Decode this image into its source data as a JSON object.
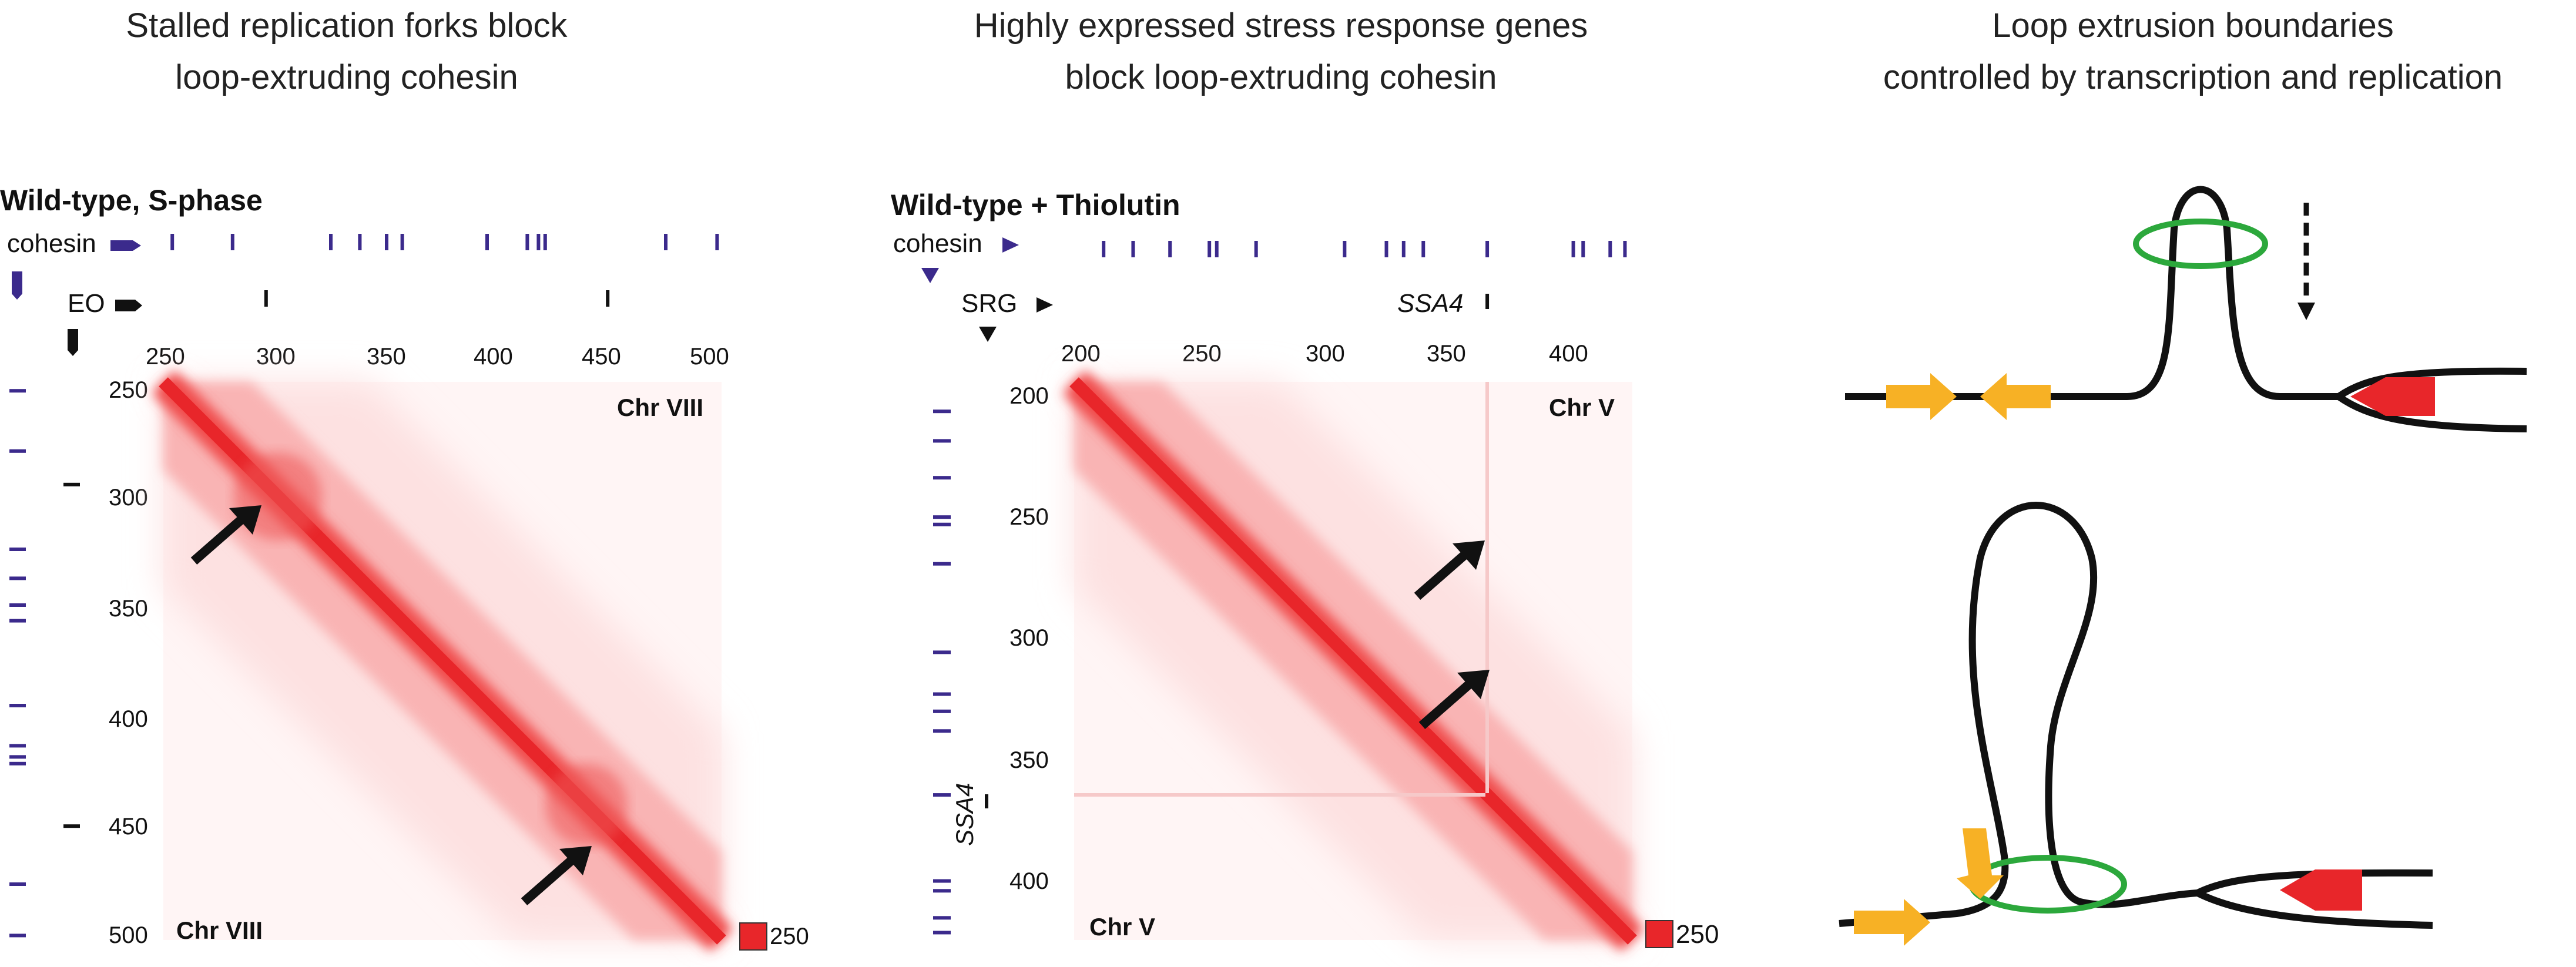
{
  "figure": {
    "titles": {
      "left": [
        "Stalled replication forks block",
        "loop-extruding cohesin"
      ],
      "middle": [
        "Highly expressed stress response genes",
        "block loop-extruding cohesin"
      ],
      "right": [
        "Loop extrusion boundaries",
        "controlled by transcription and replication"
      ]
    },
    "colors": {
      "heat": "#e8262a",
      "cohesin_track": "#3b2a8c",
      "feature_track": "#111111",
      "ring": "#2ca83c",
      "orange_arrow": "#f7b125",
      "red_arrow": "#e8262a"
    },
    "panelA": {
      "condition": "Wild-type, S-phase",
      "cohesin_label": "cohesin",
      "feature_label": "EO",
      "chromosome_top": "Chr VIII",
      "chromosome_bottom": "Chr VIII",
      "x_ticks": [
        "250",
        "300",
        "350",
        "400",
        "450",
        "500"
      ],
      "y_ticks": [
        "250",
        "300",
        "350",
        "400",
        "450",
        "500"
      ],
      "scale_value": "250",
      "cohesin_sites_kb": [
        254,
        281,
        325,
        338,
        350,
        357,
        395,
        413,
        418,
        421,
        475,
        498
      ],
      "eo_sites_kb": [
        296,
        449
      ]
    },
    "panelB": {
      "condition": "Wild-type + Thiolutin",
      "cohesin_label": "cohesin",
      "feature_label": "SRG",
      "gene_label": "SSA4",
      "gene_label_side": "SSA4",
      "chromosome_top": "Chr V",
      "chromosome_bottom": "Chr V",
      "x_ticks": [
        "200",
        "250",
        "300",
        "350",
        "400"
      ],
      "y_ticks": [
        "200",
        "250",
        "300",
        "350",
        "400"
      ],
      "scale_value": "250",
      "cohesin_sites_kb": [
        210,
        222,
        237,
        253,
        256,
        272,
        308,
        325,
        332,
        340,
        366,
        401,
        405,
        416,
        422
      ],
      "srg_sites_kb": [
        366
      ]
    }
  }
}
